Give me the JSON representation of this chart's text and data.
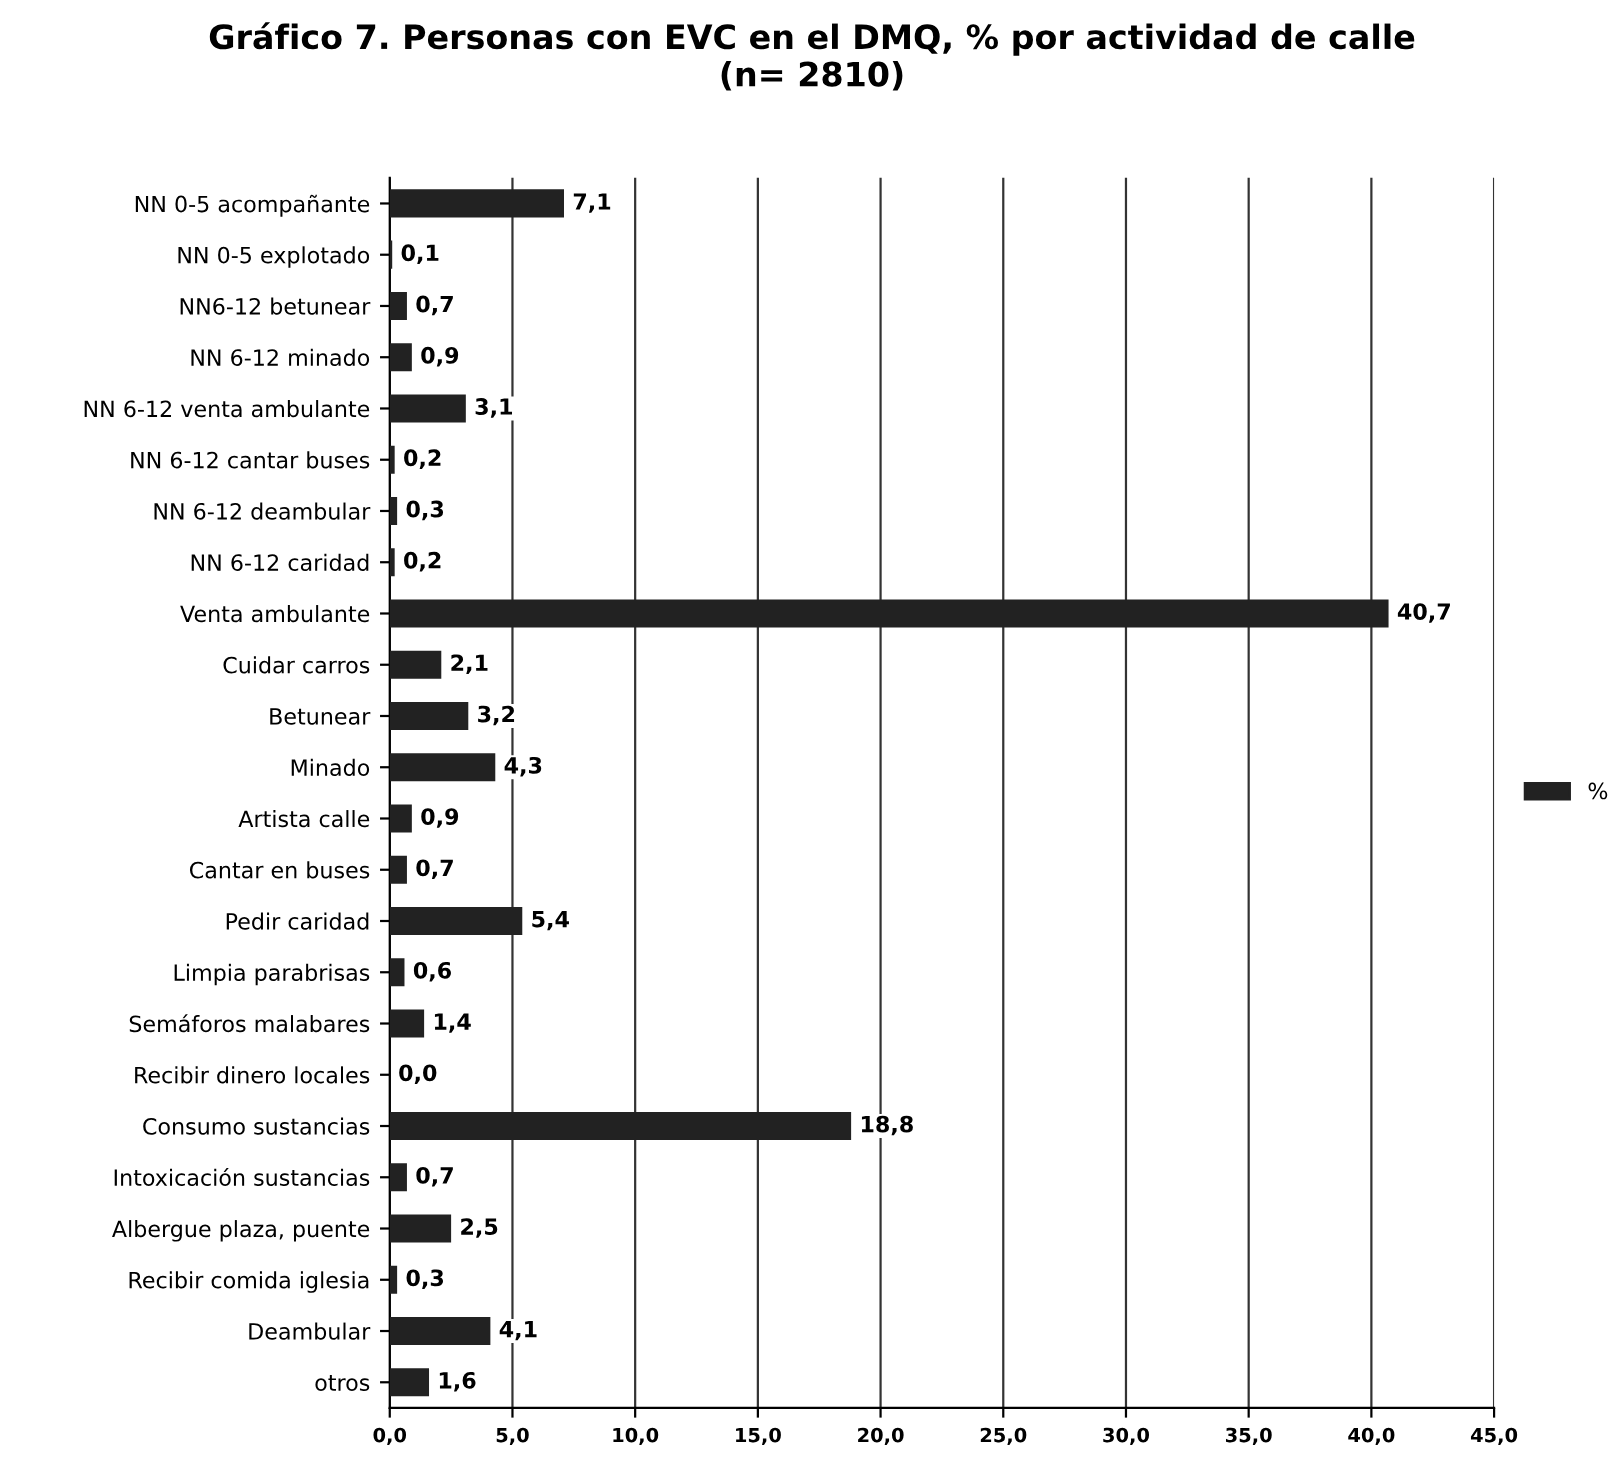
{
  "chart_data": {
    "type": "bar",
    "orientation": "horizontal",
    "title": "Gráfico 7. Personas con EVC en el DMQ, % por actividad de calle\n(n= 2810)",
    "categories": [
      "NN 0-5 acompañante",
      "NN 0-5 explotado",
      "NN6-12 betunear",
      "NN 6-12 minado",
      "NN 6-12 venta ambulante",
      "NN 6-12 cantar buses",
      "NN 6-12 deambular",
      "NN 6-12 caridad",
      "Venta ambulante",
      "Cuidar carros",
      "Betunear",
      "Minado",
      "Artista calle",
      "Cantar en buses",
      "Pedir caridad",
      "Limpia parabrisas",
      "Semáforos malabares",
      "Recibir dinero locales",
      "Consumo sustancias",
      "Intoxicación sustancias",
      "Albergue plaza, puente",
      "Recibir comida iglesia",
      "Deambular",
      "otros"
    ],
    "series": [
      {
        "name": "%",
        "color": "#222222",
        "values": [
          7.1,
          0.1,
          0.7,
          0.9,
          3.1,
          0.2,
          0.3,
          0.2,
          40.7,
          2.1,
          3.2,
          4.3,
          0.9,
          0.7,
          5.4,
          0.6,
          1.4,
          0.0,
          18.8,
          0.7,
          2.5,
          0.3,
          4.1,
          1.6
        ],
        "value_labels": [
          "7,1",
          "0,1",
          "0,7",
          "0,9",
          "3,1",
          "0,2",
          "0,3",
          "0,2",
          "40,7",
          "2,1",
          "3,2",
          "4,3",
          "0,9",
          "0,7",
          "5,4",
          "0,6",
          "1,4",
          "0,0",
          "18,8",
          "0,7",
          "2,5",
          "0,3",
          "4,1",
          "1,6"
        ]
      }
    ],
    "xlim": [
      0,
      45
    ],
    "xticks": [
      {
        "value": 0,
        "label": "0,0"
      },
      {
        "value": 5,
        "label": "5,0"
      },
      {
        "value": 10,
        "label": "10,0"
      },
      {
        "value": 15,
        "label": "15,0"
      },
      {
        "value": 20,
        "label": "20,0"
      },
      {
        "value": 25,
        "label": "25,0"
      },
      {
        "value": 30,
        "label": "30,0"
      },
      {
        "value": 35,
        "label": "35,0"
      },
      {
        "value": 40,
        "label": "40,0"
      },
      {
        "value": 45,
        "label": "45,0"
      }
    ],
    "grid": "x",
    "legend": "right"
  }
}
